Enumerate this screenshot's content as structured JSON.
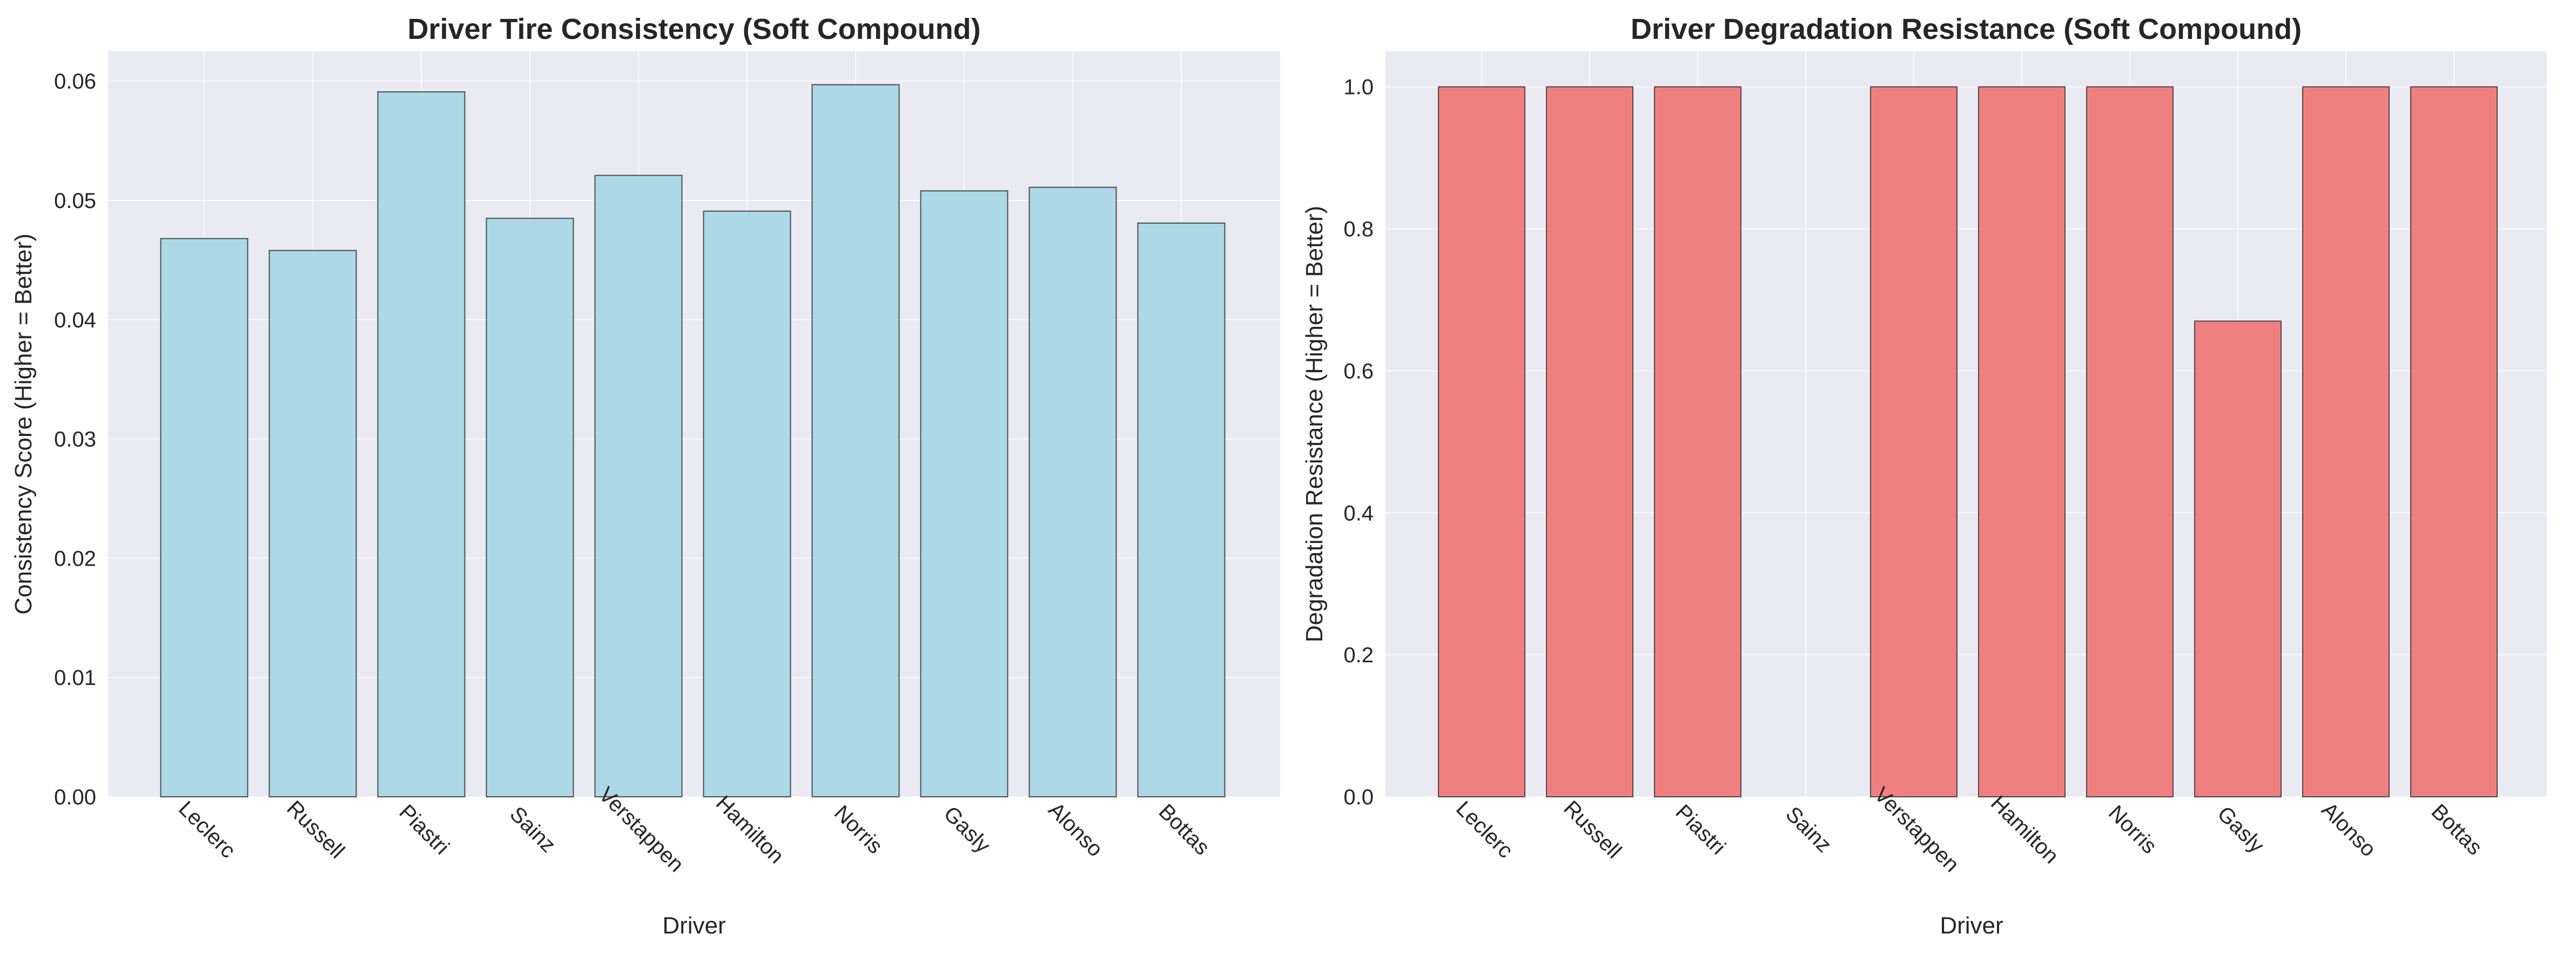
{
  "chart_data": [
    {
      "type": "bar",
      "title": "Driver Tire Consistency (Soft Compound)",
      "xlabel": "Driver",
      "ylabel": "Consistency Score (Higher = Better)",
      "categories": [
        "Leclerc",
        "Russell",
        "Piastri",
        "Sainz",
        "Verstappen",
        "Hamilton",
        "Norris",
        "Gasly",
        "Alonso",
        "Bottas"
      ],
      "values": [
        0.0468,
        0.0458,
        0.0591,
        0.0485,
        0.0521,
        0.0491,
        0.0597,
        0.0508,
        0.0511,
        0.0481
      ],
      "ylim": [
        0,
        0.0625
      ],
      "yticks": [
        "0.00",
        "0.01",
        "0.02",
        "0.03",
        "0.04",
        "0.05",
        "0.06"
      ],
      "ytick_values": [
        0,
        0.01,
        0.02,
        0.03,
        0.04,
        0.05,
        0.06
      ],
      "color": "#add8e6",
      "grid": true
    },
    {
      "type": "bar",
      "title": "Driver Degradation Resistance (Soft Compound)",
      "xlabel": "Driver",
      "ylabel": "Degradation Resistance (Higher = Better)",
      "categories": [
        "Leclerc",
        "Russell",
        "Piastri",
        "Sainz",
        "Verstappen",
        "Hamilton",
        "Norris",
        "Gasly",
        "Alonso",
        "Bottas"
      ],
      "values": [
        1.0,
        1.0,
        1.0,
        0.0,
        1.0,
        1.0,
        1.0,
        0.67,
        1.0,
        1.0
      ],
      "ylim": [
        0,
        1.05
      ],
      "yticks": [
        "0.0",
        "0.2",
        "0.4",
        "0.6",
        "0.8",
        "1.0"
      ],
      "ytick_values": [
        0,
        0.2,
        0.4,
        0.6,
        0.8,
        1.0
      ],
      "color": "#f08080",
      "grid": true
    }
  ]
}
